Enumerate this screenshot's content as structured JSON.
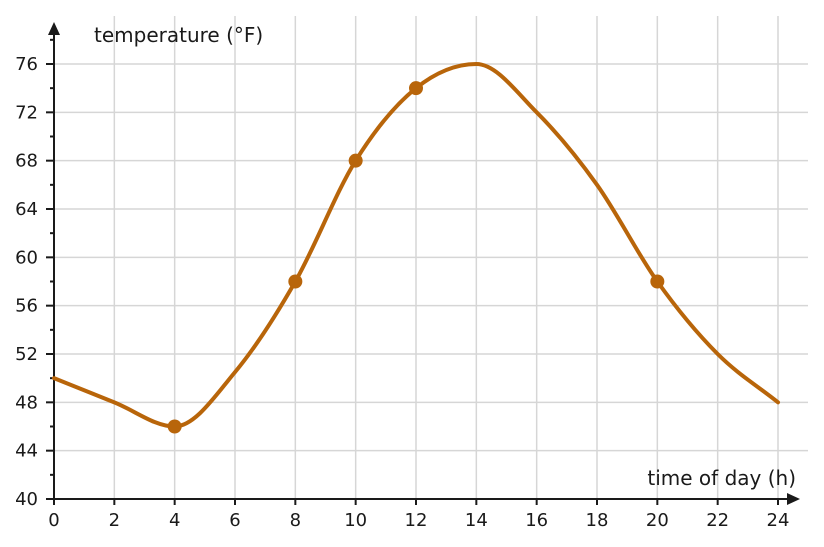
{
  "chart_data": {
    "type": "line",
    "xlabel": "time of day (h)",
    "ylabel": "temperature (°F)",
    "xlim": [
      0,
      24
    ],
    "ylim": [
      40,
      76
    ],
    "x_ticks": [
      0,
      2,
      4,
      6,
      8,
      10,
      12,
      14,
      16,
      18,
      20,
      22,
      24
    ],
    "y_ticks": [
      40,
      44,
      48,
      52,
      56,
      60,
      64,
      68,
      72,
      76
    ],
    "grid": true,
    "series": [
      {
        "color": "#b8650a",
        "x": [
          0,
          2,
          4,
          6,
          8,
          10,
          12,
          14,
          16,
          18,
          20,
          22,
          24
        ],
        "y": [
          50,
          48,
          46,
          50.5,
          58,
          68,
          74,
          76,
          72,
          66,
          58,
          52,
          48
        ]
      }
    ],
    "highlighted_points": [
      {
        "x": 4,
        "y": 46
      },
      {
        "x": 8,
        "y": 58
      },
      {
        "x": 10,
        "y": 68
      },
      {
        "x": 12,
        "y": 74
      },
      {
        "x": 20,
        "y": 58
      }
    ]
  }
}
